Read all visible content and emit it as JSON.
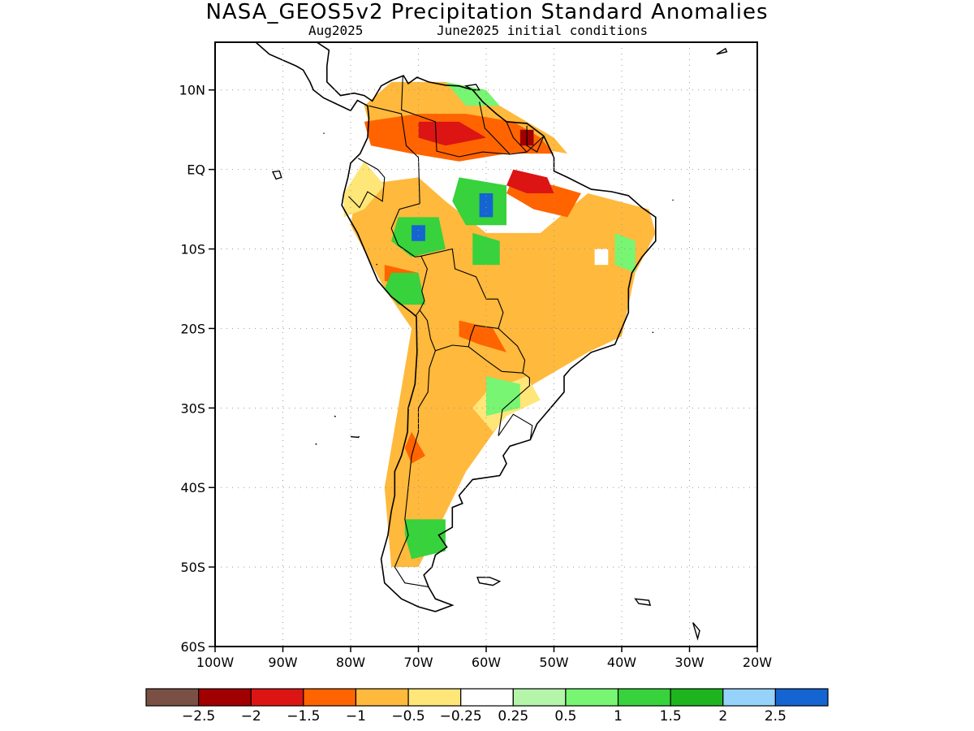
{
  "title": "NASA_GEOS5v2 Precipitation Standard Anomalies",
  "subtitle_left": "Aug2025",
  "subtitle_right": "June2025 initial conditions",
  "axes": {
    "lon_ticks": [
      {
        "value": -100,
        "label": "100W"
      },
      {
        "value": -90,
        "label": "90W"
      },
      {
        "value": -80,
        "label": "80W"
      },
      {
        "value": -70,
        "label": "70W"
      },
      {
        "value": -60,
        "label": "60W"
      },
      {
        "value": -50,
        "label": "50W"
      },
      {
        "value": -40,
        "label": "40W"
      },
      {
        "value": -30,
        "label": "30W"
      },
      {
        "value": -20,
        "label": "20W"
      }
    ],
    "lat_ticks": [
      {
        "value": 10,
        "label": "10N"
      },
      {
        "value": 0,
        "label": "EQ"
      },
      {
        "value": -10,
        "label": "10S"
      },
      {
        "value": -20,
        "label": "20S"
      },
      {
        "value": -30,
        "label": "30S"
      },
      {
        "value": -40,
        "label": "40S"
      },
      {
        "value": -50,
        "label": "50S"
      },
      {
        "value": -60,
        "label": "60S"
      }
    ],
    "lon_range": [
      -100,
      -20
    ],
    "lat_range": [
      -60,
      16
    ],
    "grid": "dotted"
  },
  "colorbar": {
    "colors": [
      "#7b5044",
      "#a00000",
      "#dc1414",
      "#ff6400",
      "#ffb93c",
      "#ffe678",
      "#ffffff",
      "#b4f5aa",
      "#78f573",
      "#37d23c",
      "#1eb41e",
      "#96d2fa",
      "#1464d2"
    ],
    "labels": [
      "−2.5",
      "−2",
      "−1.5",
      "−1",
      "−0.5",
      "−0.25",
      "0.25",
      "0.5",
      "1",
      "1.5",
      "2",
      "2.5"
    ]
  },
  "anomaly_regions": [
    {
      "level": 4,
      "lonlat": [
        [
          -79,
          -2
        ],
        [
          -70,
          -1
        ],
        [
          -66,
          -4
        ],
        [
          -60,
          -8
        ],
        [
          -52,
          -8
        ],
        [
          -45,
          -3
        ],
        [
          -36,
          -5
        ],
        [
          -35,
          -8
        ],
        [
          -38,
          -13
        ],
        [
          -40,
          -21
        ],
        [
          -45,
          -23
        ],
        [
          -53,
          -27
        ],
        [
          -58,
          -32
        ],
        [
          -63,
          -38
        ],
        [
          -67,
          -45
        ],
        [
          -70,
          -50
        ],
        [
          -74,
          -50
        ],
        [
          -75,
          -40
        ],
        [
          -73,
          -30
        ],
        [
          -71,
          -20
        ],
        [
          -75,
          -15
        ],
        [
          -80,
          -7
        ]
      ]
    },
    {
      "level": 4,
      "lonlat": [
        [
          -78,
          8
        ],
        [
          -74,
          11
        ],
        [
          -66,
          11
        ],
        [
          -58,
          8
        ],
        [
          -50,
          4
        ],
        [
          -48,
          2
        ],
        [
          -55,
          3
        ],
        [
          -62,
          4
        ],
        [
          -70,
          4
        ],
        [
          -77,
          5
        ]
      ]
    },
    {
      "level": 5,
      "lonlat": [
        [
          -81,
          -3
        ],
        [
          -78,
          1
        ],
        [
          -75,
          -2
        ],
        [
          -78,
          -5
        ],
        [
          -81,
          -6
        ]
      ]
    },
    {
      "level": 5,
      "lonlat": [
        [
          -60,
          -28
        ],
        [
          -54,
          -26
        ],
        [
          -52,
          -29
        ],
        [
          -57,
          -31
        ],
        [
          -59,
          -33
        ],
        [
          -62,
          -30
        ]
      ]
    },
    {
      "level": 3,
      "lonlat": [
        [
          -78,
          6
        ],
        [
          -70,
          7
        ],
        [
          -63,
          7
        ],
        [
          -56,
          6
        ],
        [
          -52,
          4
        ],
        [
          -50,
          2
        ],
        [
          -57,
          2
        ],
        [
          -64,
          1
        ],
        [
          -71,
          2
        ],
        [
          -77,
          3
        ]
      ]
    },
    {
      "level": 3,
      "lonlat": [
        [
          -56,
          -1
        ],
        [
          -50,
          -2
        ],
        [
          -46,
          -3
        ],
        [
          -48,
          -6
        ],
        [
          -53,
          -5
        ],
        [
          -57,
          -3
        ]
      ]
    },
    {
      "level": 3,
      "lonlat": [
        [
          -75,
          -12
        ],
        [
          -70,
          -13
        ],
        [
          -71,
          -15
        ],
        [
          -75,
          -14
        ]
      ]
    },
    {
      "level": 3,
      "lonlat": [
        [
          -64,
          -19
        ],
        [
          -59,
          -20
        ],
        [
          -57,
          -23
        ],
        [
          -61,
          -22
        ],
        [
          -64,
          -21
        ]
      ]
    },
    {
      "level": 3,
      "lonlat": [
        [
          -71,
          -33
        ],
        [
          -69,
          -36
        ],
        [
          -71,
          -37
        ],
        [
          -72,
          -35
        ]
      ]
    },
    {
      "level": 2,
      "lonlat": [
        [
          -70,
          6
        ],
        [
          -64,
          6
        ],
        [
          -60,
          4
        ],
        [
          -66,
          3
        ],
        [
          -70,
          4
        ]
      ]
    },
    {
      "level": 2,
      "lonlat": [
        [
          -56,
          0
        ],
        [
          -51,
          -1
        ],
        [
          -50,
          -3
        ],
        [
          -54,
          -3
        ],
        [
          -57,
          -2
        ]
      ]
    },
    {
      "level": 1,
      "lonlat": [
        [
          -55,
          5
        ],
        [
          -53,
          5
        ],
        [
          -53,
          3
        ],
        [
          -55,
          3
        ]
      ]
    },
    {
      "level": 9,
      "lonlat": [
        [
          -64,
          -1
        ],
        [
          -57,
          -2
        ],
        [
          -57,
          -7
        ],
        [
          -63,
          -7
        ],
        [
          -65,
          -4
        ]
      ]
    },
    {
      "level": 9,
      "lonlat": [
        [
          -73,
          -6
        ],
        [
          -67,
          -6
        ],
        [
          -66,
          -10
        ],
        [
          -71,
          -11
        ],
        [
          -74,
          -9
        ]
      ]
    },
    {
      "level": 9,
      "lonlat": [
        [
          -74,
          -13
        ],
        [
          -70,
          -13
        ],
        [
          -69,
          -17
        ],
        [
          -73,
          -17
        ],
        [
          -75,
          -15
        ]
      ]
    },
    {
      "level": 9,
      "lonlat": [
        [
          -72,
          -44
        ],
        [
          -66,
          -44
        ],
        [
          -66,
          -48
        ],
        [
          -71,
          -49
        ],
        [
          -72,
          -46
        ]
      ]
    },
    {
      "level": 9,
      "lonlat": [
        [
          -62,
          -8
        ],
        [
          -58,
          -9
        ],
        [
          -58,
          -12
        ],
        [
          -62,
          -12
        ]
      ]
    },
    {
      "level": 8,
      "lonlat": [
        [
          -60,
          -26
        ],
        [
          -55,
          -27
        ],
        [
          -55,
          -30
        ],
        [
          -60,
          -31
        ]
      ]
    },
    {
      "level": 8,
      "lonlat": [
        [
          -41,
          -8
        ],
        [
          -38,
          -9
        ],
        [
          -38,
          -13
        ],
        [
          -41,
          -12
        ]
      ]
    },
    {
      "level": 8,
      "lonlat": [
        [
          -66,
          11
        ],
        [
          -60,
          10
        ],
        [
          -58,
          8
        ],
        [
          -63,
          8
        ]
      ]
    },
    {
      "level": 12,
      "lonlat": [
        [
          -61,
          -3
        ],
        [
          -59,
          -3
        ],
        [
          -59,
          -6
        ],
        [
          -61,
          -6
        ]
      ]
    },
    {
      "level": 12,
      "lonlat": [
        [
          -71,
          -7
        ],
        [
          -69,
          -7
        ],
        [
          -69,
          -9
        ],
        [
          -71,
          -9
        ]
      ]
    },
    {
      "level": 6,
      "lonlat": [
        [
          -44,
          -10
        ],
        [
          -42,
          -10
        ],
        [
          -42,
          -12
        ],
        [
          -44,
          -12
        ]
      ]
    }
  ],
  "coastline_lonlat": [
    [
      -118,
      25
    ],
    [
      -110,
      23
    ],
    [
      -105,
      19
    ],
    [
      -100,
      17
    ],
    [
      -94,
      16
    ],
    [
      -92,
      14.5
    ],
    [
      -88,
      13
    ],
    [
      -87,
      12.5
    ],
    [
      -86,
      11
    ],
    [
      -85.5,
      10
    ],
    [
      -84,
      9
    ],
    [
      -82,
      8.2
    ],
    [
      -80,
      7.4
    ],
    [
      -79,
      8.7
    ],
    [
      -77.5,
      8
    ],
    [
      -77.3,
      6.5
    ],
    [
      -77.5,
      4
    ],
    [
      -78.6,
      2
    ],
    [
      -80,
      0.8
    ],
    [
      -80.4,
      -1
    ],
    [
      -81,
      -3
    ],
    [
      -81.3,
      -4.5
    ],
    [
      -80,
      -6.5
    ],
    [
      -79,
      -8
    ],
    [
      -77,
      -12
    ],
    [
      -76,
      -14
    ],
    [
      -74,
      -16
    ],
    [
      -71,
      -18
    ],
    [
      -70.3,
      -18.5
    ],
    [
      -70.2,
      -23
    ],
    [
      -70.5,
      -27
    ],
    [
      -71.5,
      -30
    ],
    [
      -71.6,
      -33
    ],
    [
      -72.5,
      -36
    ],
    [
      -73.5,
      -38
    ],
    [
      -73.5,
      -41
    ],
    [
      -74,
      -43
    ],
    [
      -74.5,
      -46
    ],
    [
      -75.5,
      -49
    ],
    [
      -75,
      -52
    ],
    [
      -72.5,
      -54
    ],
    [
      -70,
      -55
    ],
    [
      -67.5,
      -55.6
    ],
    [
      -65,
      -54.8
    ],
    [
      -67.5,
      -54
    ],
    [
      -68.5,
      -52.5
    ],
    [
      -69.2,
      -51
    ],
    [
      -68,
      -50
    ],
    [
      -67.5,
      -48.5
    ],
    [
      -65.8,
      -47.5
    ],
    [
      -67,
      -46
    ],
    [
      -65,
      -45
    ],
    [
      -65,
      -42.5
    ],
    [
      -63.5,
      -42
    ],
    [
      -64,
      -41
    ],
    [
      -62,
      -39
    ],
    [
      -58,
      -38.5
    ],
    [
      -57,
      -37
    ],
    [
      -57.5,
      -36
    ],
    [
      -56.5,
      -34.8
    ],
    [
      -53.5,
      -34
    ],
    [
      -52.5,
      -32
    ],
    [
      -50.5,
      -30
    ],
    [
      -48.5,
      -28
    ],
    [
      -48.5,
      -26
    ],
    [
      -47.5,
      -25
    ],
    [
      -44.5,
      -23
    ],
    [
      -41,
      -22
    ],
    [
      -40,
      -20
    ],
    [
      -39,
      -18
    ],
    [
      -39,
      -15
    ],
    [
      -38.5,
      -13
    ],
    [
      -37,
      -11
    ],
    [
      -35,
      -9
    ],
    [
      -35,
      -6
    ],
    [
      -37,
      -4.8
    ],
    [
      -39,
      -3.3
    ],
    [
      -41.5,
      -2.8
    ],
    [
      -44.5,
      -2.5
    ],
    [
      -48,
      -1
    ],
    [
      -50,
      -0.2
    ],
    [
      -50,
      1.5
    ],
    [
      -51.5,
      4.2
    ],
    [
      -54,
      5.8
    ],
    [
      -57,
      6
    ],
    [
      -58.5,
      7
    ],
    [
      -60.5,
      8.5
    ],
    [
      -62,
      10
    ],
    [
      -64,
      10.5
    ],
    [
      -66,
      10.6
    ],
    [
      -68.5,
      11
    ],
    [
      -70.2,
      11.6
    ],
    [
      -71.5,
      10.8
    ],
    [
      -72.2,
      11.8
    ],
    [
      -74,
      11.2
    ],
    [
      -75.5,
      10.5
    ],
    [
      -76.8,
      8.6
    ],
    [
      -78,
      9.3
    ],
    [
      -79.5,
      9.6
    ],
    [
      -81.5,
      9.3
    ],
    [
      -83.5,
      11
    ],
    [
      -83.5,
      13
    ],
    [
      -83.2,
      15
    ],
    [
      -85,
      16
    ],
    [
      -88,
      16
    ],
    [
      -88.5,
      18
    ],
    [
      -87.5,
      21
    ],
    [
      -90,
      21.5
    ],
    [
      -91,
      19
    ],
    [
      -94,
      18.3
    ],
    [
      -97,
      20
    ]
  ],
  "borders_lonlat": [
    [
      [
        -77.3,
        8
      ],
      [
        -72.5,
        7
      ],
      [
        -71.8,
        3
      ],
      [
        -70,
        1.5
      ],
      [
        -69.8,
        -4.3
      ]
    ],
    [
      [
        -78.9,
        1.4
      ],
      [
        -76,
        0
      ],
      [
        -75,
        -1
      ],
      [
        -75.3,
        -4
      ],
      [
        -77.5,
        -2.8
      ],
      [
        -78.7,
        -4.8
      ],
      [
        -80.3,
        -3.4
      ]
    ],
    [
      [
        -72.3,
        11.7
      ],
      [
        -72.5,
        7.5
      ],
      [
        -67.5,
        6
      ],
      [
        -67.3,
        2.3
      ],
      [
        -64,
        1.6
      ]
    ],
    [
      [
        -61,
        8.5
      ],
      [
        -60.2,
        5.2
      ],
      [
        -56.5,
        1.9
      ]
    ],
    [
      [
        -57,
        6
      ],
      [
        -56,
        4
      ],
      [
        -54,
        2.2
      ]
    ],
    [
      [
        -54,
        5.5
      ],
      [
        -54,
        3
      ],
      [
        -52.5,
        2.2
      ],
      [
        -51.5,
        4.2
      ]
    ],
    [
      [
        -64,
        1.6
      ],
      [
        -60.5,
        2.2
      ],
      [
        -56.5,
        1.9
      ],
      [
        -54,
        2.2
      ],
      [
        -51.5,
        4.2
      ]
    ],
    [
      [
        -69.8,
        -4.3
      ],
      [
        -72.8,
        -5
      ],
      [
        -74,
        -7.4
      ],
      [
        -73,
        -9.5
      ],
      [
        -70.5,
        -11
      ],
      [
        -69.6,
        -10.9
      ],
      [
        -68.7,
        -12.5
      ],
      [
        -69.5,
        -15.3
      ],
      [
        -69.1,
        -16.5
      ],
      [
        -69.8,
        -17.7
      ],
      [
        -70.4,
        -18.4
      ]
    ],
    [
      [
        -69.6,
        -10.9
      ],
      [
        -65,
        -10
      ],
      [
        -64.6,
        -12.5
      ],
      [
        -61.5,
        -13.5
      ],
      [
        -60,
        -16.3
      ],
      [
        -58.3,
        -16.3
      ],
      [
        -57.5,
        -18
      ],
      [
        -58.2,
        -20
      ]
    ],
    [
      [
        -69.8,
        -17.7
      ],
      [
        -68.7,
        -19
      ],
      [
        -68.2,
        -21.3
      ],
      [
        -67.5,
        -22.8
      ],
      [
        -65,
        -22.1
      ],
      [
        -62.6,
        -22.3
      ],
      [
        -62.3,
        -21
      ],
      [
        -61.7,
        -19.6
      ],
      [
        -58.2,
        -20
      ]
    ],
    [
      [
        -67.5,
        -22.8
      ],
      [
        -68.4,
        -25
      ],
      [
        -68.6,
        -28
      ],
      [
        -70,
        -30
      ],
      [
        -70,
        -33
      ],
      [
        -71,
        -36
      ],
      [
        -71.5,
        -40
      ],
      [
        -72,
        -44
      ],
      [
        -71.5,
        -46
      ],
      [
        -72.5,
        -48
      ],
      [
        -73.5,
        -50
      ],
      [
        -72,
        -52
      ],
      [
        -68.5,
        -52.5
      ]
    ],
    [
      [
        -62.6,
        -22.3
      ],
      [
        -60,
        -24
      ],
      [
        -57.7,
        -25.4
      ],
      [
        -54.6,
        -25.6
      ],
      [
        -54.3,
        -24
      ],
      [
        -55.4,
        -22.2
      ],
      [
        -58.2,
        -20
      ]
    ],
    [
      [
        -58.2,
        -33.5
      ],
      [
        -57.6,
        -30.2
      ],
      [
        -53.6,
        -27.2
      ],
      [
        -53.6,
        -26.2
      ],
      [
        -54.6,
        -25.6
      ]
    ],
    [
      [
        -58.2,
        -33.5
      ],
      [
        -56,
        -30.8
      ],
      [
        -53.2,
        -32.2
      ],
      [
        -53.5,
        -34
      ]
    ]
  ],
  "islands_lonlat": [
    [
      [
        -91.5,
        -0.3
      ],
      [
        -90.5,
        -0.2
      ],
      [
        -90.2,
        -1
      ],
      [
        -91,
        -1.2
      ]
    ],
    [
      [
        -61.3,
        -51.3
      ],
      [
        -59.5,
        -51.3
      ],
      [
        -58,
        -51.8
      ],
      [
        -59,
        -52.3
      ],
      [
        -61,
        -52
      ]
    ],
    [
      [
        -38,
        -54
      ],
      [
        -36,
        -54.2
      ],
      [
        -35.8,
        -54.8
      ],
      [
        -37.5,
        -54.6
      ]
    ],
    [
      [
        -26,
        14.5
      ],
      [
        -24.5,
        14.8
      ],
      [
        -24.7,
        15.2
      ]
    ],
    [
      [
        -29.5,
        -57
      ],
      [
        -28.8,
        -59
      ],
      [
        -28.5,
        -58
      ]
    ],
    [
      [
        -63,
        10.5
      ],
      [
        -61.5,
        10.7
      ],
      [
        -61,
        10
      ],
      [
        -62,
        10
      ]
    ],
    [
      [
        -80,
        -33.6
      ],
      [
        -78.8,
        -33.7
      ]
    ],
    [
      [
        -78.7,
        -33.6
      ],
      [
        -78.9,
        -33.65
      ]
    ],
    [
      [
        -32.5,
        -3.8
      ],
      [
        -32.4,
        -3.9
      ]
    ],
    [
      [
        -35.5,
        -20.5
      ],
      [
        -35.3,
        -20.5
      ]
    ],
    [
      [
        -76.2,
        -11.9
      ],
      [
        -76.1,
        -12
      ]
    ],
    [
      [
        -84,
        4.6
      ],
      [
        -83.9,
        4.5
      ]
    ],
    [
      [
        -82.4,
        -31
      ],
      [
        -82.2,
        -31.1
      ]
    ],
    [
      [
        -85.2,
        -34.5
      ],
      [
        -85,
        -34.6
      ]
    ]
  ]
}
